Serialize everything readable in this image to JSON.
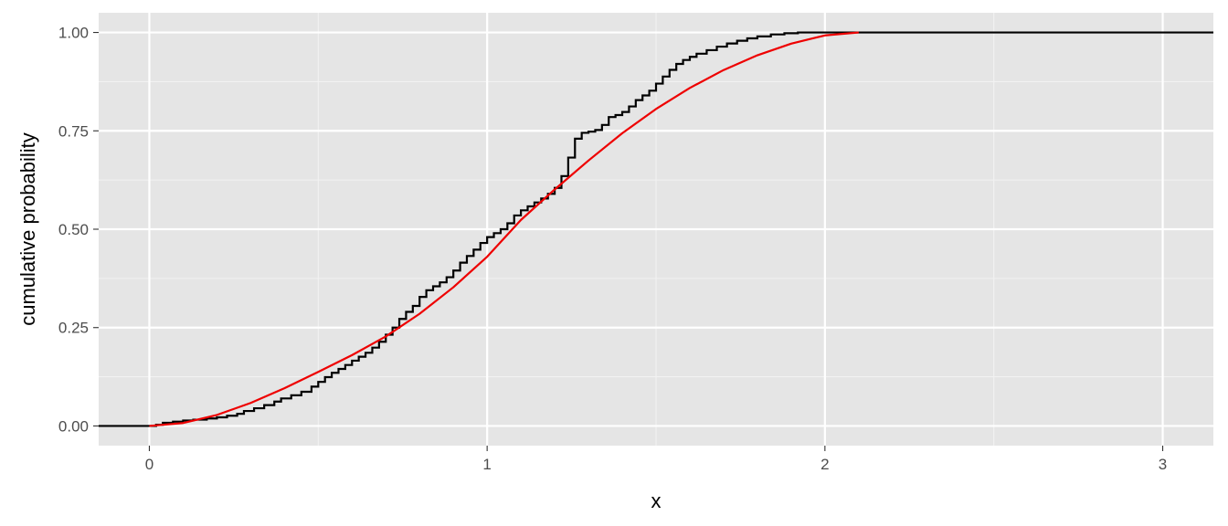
{
  "chart_data": {
    "type": "line",
    "title": "",
    "xlabel": "x",
    "ylabel": "cumulative probability",
    "xlim": [
      -0.15,
      3.15
    ],
    "ylim": [
      -0.05,
      1.05
    ],
    "x_ticks": [
      0,
      1,
      2,
      3
    ],
    "x_tick_labels": [
      "0",
      "1",
      "2",
      "3"
    ],
    "y_ticks": [
      0,
      0.25,
      0.5,
      0.75,
      1
    ],
    "y_tick_labels": [
      "0.00",
      "0.25",
      "0.50",
      "0.75",
      "1.00"
    ],
    "grid": true,
    "legend": "none",
    "panel_background": "#e5e5e5",
    "series": [
      {
        "kind": "step",
        "color": "#000000",
        "x": [
          -0.15,
          0.02,
          0.04,
          0.07,
          0.1,
          0.13,
          0.17,
          0.2,
          0.23,
          0.26,
          0.28,
          0.31,
          0.34,
          0.37,
          0.39,
          0.42,
          0.45,
          0.48,
          0.5,
          0.52,
          0.54,
          0.56,
          0.58,
          0.6,
          0.62,
          0.64,
          0.66,
          0.68,
          0.7,
          0.72,
          0.74,
          0.76,
          0.78,
          0.8,
          0.82,
          0.84,
          0.86,
          0.88,
          0.9,
          0.92,
          0.94,
          0.96,
          0.98,
          1.0,
          1.02,
          1.04,
          1.06,
          1.08,
          1.1,
          1.12,
          1.14,
          1.16,
          1.18,
          1.2,
          1.22,
          1.24,
          1.26,
          1.28,
          1.3,
          1.32,
          1.34,
          1.36,
          1.38,
          1.4,
          1.42,
          1.44,
          1.46,
          1.48,
          1.5,
          1.52,
          1.54,
          1.56,
          1.58,
          1.6,
          1.62,
          1.65,
          1.68,
          1.71,
          1.74,
          1.77,
          1.8,
          1.84,
          1.88,
          1.92,
          3.15
        ],
        "y": [
          0,
          0.003,
          0.008,
          0.011,
          0.014,
          0.016,
          0.019,
          0.022,
          0.026,
          0.031,
          0.038,
          0.045,
          0.053,
          0.062,
          0.07,
          0.078,
          0.087,
          0.1,
          0.112,
          0.124,
          0.135,
          0.145,
          0.155,
          0.166,
          0.176,
          0.186,
          0.199,
          0.214,
          0.232,
          0.25,
          0.272,
          0.29,
          0.305,
          0.328,
          0.345,
          0.355,
          0.365,
          0.378,
          0.395,
          0.415,
          0.432,
          0.448,
          0.465,
          0.48,
          0.49,
          0.5,
          0.515,
          0.535,
          0.548,
          0.558,
          0.568,
          0.578,
          0.59,
          0.605,
          0.635,
          0.682,
          0.73,
          0.745,
          0.748,
          0.752,
          0.765,
          0.785,
          0.79,
          0.798,
          0.812,
          0.828,
          0.84,
          0.852,
          0.87,
          0.888,
          0.905,
          0.92,
          0.93,
          0.938,
          0.946,
          0.955,
          0.964,
          0.972,
          0.979,
          0.985,
          0.99,
          0.995,
          0.998,
          1.0,
          1.0
        ]
      },
      {
        "kind": "smooth",
        "color": "#ee0000",
        "x": [
          0.0,
          0.1,
          0.2,
          0.3,
          0.4,
          0.5,
          0.6,
          0.7,
          0.8,
          0.9,
          1.0,
          1.1,
          1.2,
          1.3,
          1.4,
          1.5,
          1.6,
          1.7,
          1.8,
          1.9,
          2.0,
          2.1
        ],
        "y": [
          0.0,
          0.0075,
          0.028,
          0.0585,
          0.096,
          0.1375,
          0.18,
          0.2275,
          0.285,
          0.3525,
          0.43,
          0.5235,
          0.601,
          0.6745,
          0.744,
          0.8055,
          0.859,
          0.9045,
          0.942,
          0.9715,
          0.9925,
          1.0
        ]
      }
    ]
  }
}
